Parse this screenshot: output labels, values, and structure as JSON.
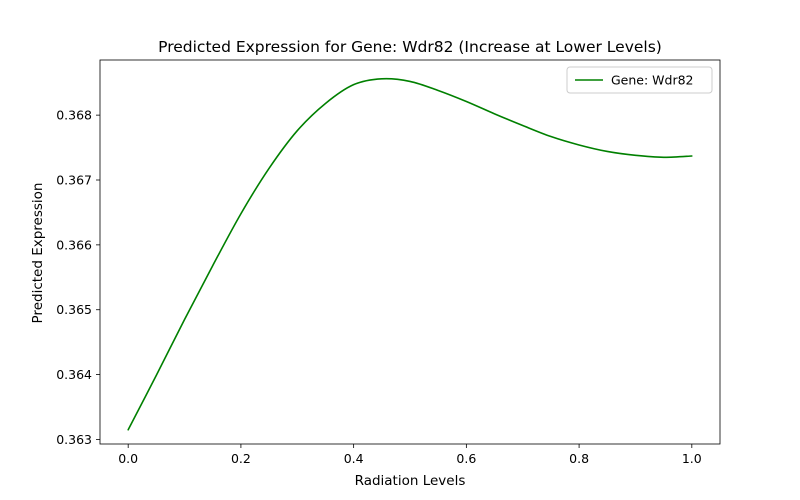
{
  "chart_data": {
    "type": "line",
    "title": "Predicted Expression for Gene: Wdr82 (Increase at Lower Levels)",
    "xlabel": "Radiation Levels",
    "ylabel": "Predicted Expression",
    "xlim": [
      -0.05,
      1.05
    ],
    "ylim": [
      0.36293,
      0.36885
    ],
    "xticks": [
      0.0,
      0.2,
      0.4,
      0.6,
      0.8,
      1.0
    ],
    "xtick_labels": [
      "0.0",
      "0.2",
      "0.4",
      "0.6",
      "0.8",
      "1.0"
    ],
    "yticks": [
      0.363,
      0.364,
      0.365,
      0.366,
      0.367,
      0.368
    ],
    "ytick_labels": [
      "0.363",
      "0.364",
      "0.365",
      "0.366",
      "0.367",
      "0.368"
    ],
    "grid": false,
    "legend_position": "top-right",
    "series": [
      {
        "name": "Gene: Wdr82",
        "color": "#008000",
        "x": [
          0.0,
          0.05,
          0.1,
          0.15,
          0.2,
          0.25,
          0.3,
          0.35,
          0.4,
          0.45,
          0.5,
          0.55,
          0.6,
          0.65,
          0.7,
          0.75,
          0.8,
          0.85,
          0.9,
          0.95,
          1.0
        ],
        "y": [
          0.36315,
          0.36399,
          0.36485,
          0.36568,
          0.36648,
          0.36718,
          0.36776,
          0.36818,
          0.36847,
          0.36856,
          0.36852,
          0.36838,
          0.36821,
          0.36802,
          0.36784,
          0.36767,
          0.36754,
          0.36744,
          0.36738,
          0.36735,
          0.36737
        ]
      }
    ]
  }
}
